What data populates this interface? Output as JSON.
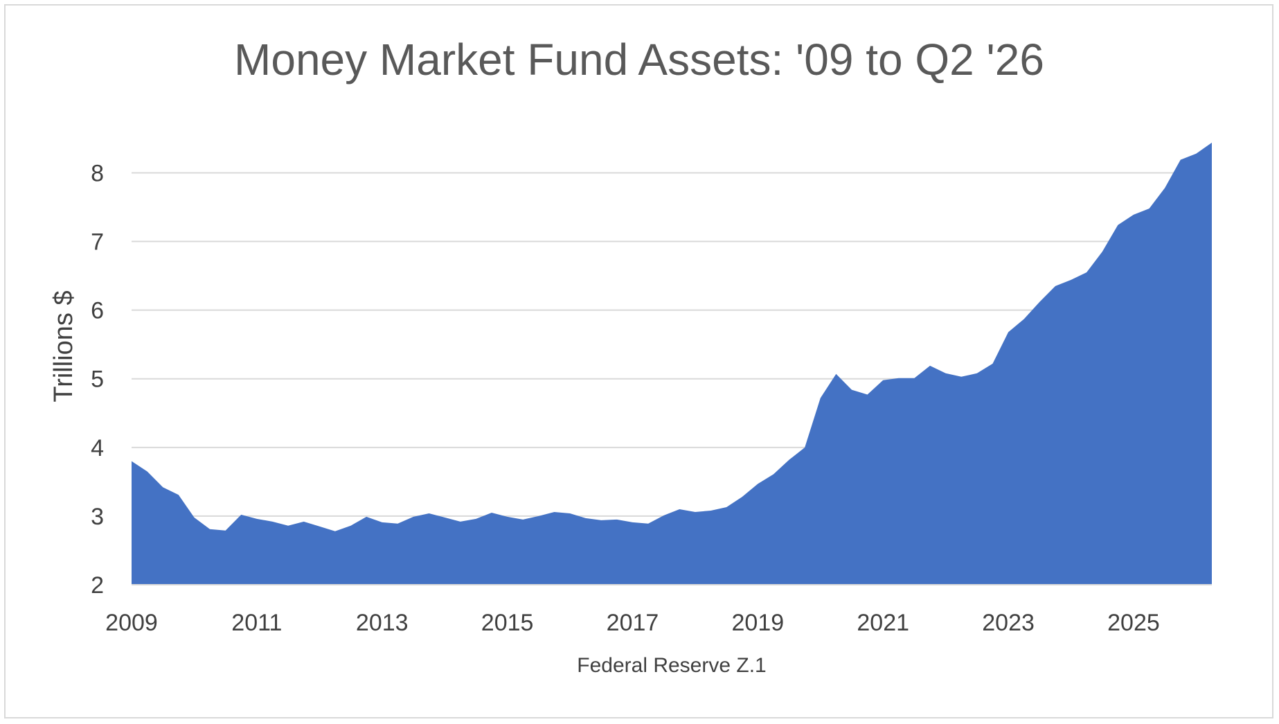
{
  "chart_data": {
    "type": "area",
    "title": "Money Market Fund Assets: '09 to Q2 '26",
    "xlabel": "Federal Reserve Z.1",
    "ylabel": "Trillions $",
    "xlim": [
      2009.0,
      2026.25
    ],
    "ylim": [
      2,
      8.6
    ],
    "yticks": [
      2,
      3,
      4,
      5,
      6,
      7,
      8
    ],
    "xticks": [
      2009,
      2011,
      2013,
      2015,
      2017,
      2019,
      2021,
      2023,
      2025
    ],
    "grid": "horizontal",
    "legend": "none",
    "color": "#4472c4",
    "series": [
      {
        "x": [
          2009.0,
          2009.25,
          2009.5,
          2009.75,
          2010.0,
          2010.25,
          2010.5,
          2010.75,
          2011.0,
          2011.25,
          2011.5,
          2011.75,
          2012.0,
          2012.25,
          2012.5,
          2012.75,
          2013.0,
          2013.25,
          2013.5,
          2013.75,
          2014.0,
          2014.25,
          2014.5,
          2014.75,
          2015.0,
          2015.25,
          2015.5,
          2015.75,
          2016.0,
          2016.25,
          2016.5,
          2016.75,
          2017.0,
          2017.25,
          2017.5,
          2017.75,
          2018.0,
          2018.25,
          2018.5,
          2018.75,
          2019.0,
          2019.25,
          2019.5,
          2019.75,
          2020.0,
          2020.25,
          2020.5,
          2020.75,
          2021.0,
          2021.25,
          2021.5,
          2021.75,
          2022.0,
          2022.25,
          2022.5,
          2022.75,
          2023.0,
          2023.25,
          2023.5,
          2023.75,
          2024.0,
          2024.25,
          2024.5,
          2024.75,
          2025.0,
          2025.25,
          2025.5,
          2025.75,
          2026.0,
          2026.25
        ],
        "y": [
          3.8,
          3.65,
          3.42,
          3.31,
          2.98,
          2.81,
          2.79,
          3.02,
          2.96,
          2.92,
          2.86,
          2.92,
          2.85,
          2.78,
          2.86,
          2.99,
          2.91,
          2.89,
          2.99,
          3.04,
          2.98,
          2.92,
          2.96,
          3.05,
          2.99,
          2.95,
          3.0,
          3.06,
          3.04,
          2.97,
          2.94,
          2.95,
          2.91,
          2.89,
          3.01,
          3.1,
          3.06,
          3.08,
          3.13,
          3.28,
          3.47,
          3.61,
          3.82,
          4.0,
          4.72,
          5.07,
          4.84,
          4.77,
          4.98,
          5.01,
          5.01,
          5.19,
          5.08,
          5.03,
          5.08,
          5.22,
          5.68,
          5.87,
          6.12,
          6.35,
          6.44,
          6.55,
          6.85,
          7.24,
          7.39,
          7.48,
          7.78,
          8.19,
          8.28,
          8.44
        ]
      }
    ]
  }
}
